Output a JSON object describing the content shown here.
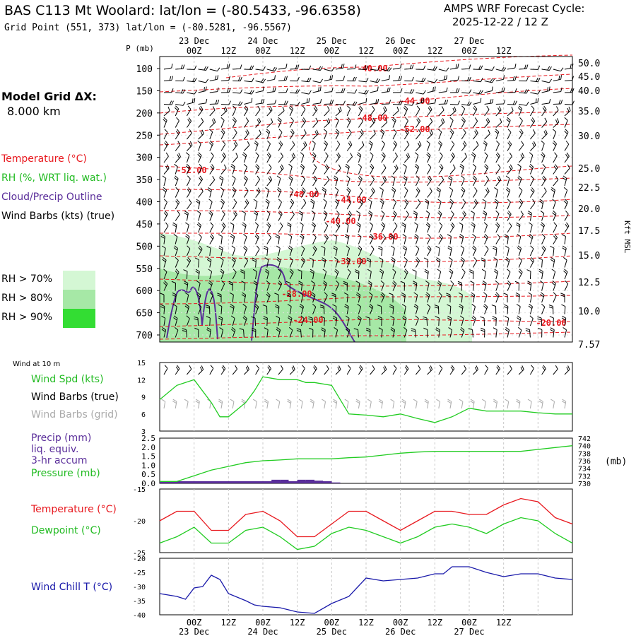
{
  "header": {
    "station_title": "BAS C113 Mt Woolard:  lat/lon = (-80.5433, -96.6358)",
    "grid_point": "Grid Point (551, 373) lat/lon = (-80.5281, -96.5567)",
    "forecast_label": "AMPS WRF Forecast Cycle:",
    "forecast_cycle": "2025-12-22 / 12  Z"
  },
  "left_panel": {
    "model_grid_label": "Model Grid ΔX:",
    "model_grid_value": "8.000 km",
    "legend_temperature": "Temperature (°C)",
    "legend_rh": "RH (%, WRT liq. wat.)",
    "legend_cloud": "Cloud/Precip Outline",
    "legend_wind": "Wind Barbs (kts) (true)",
    "rh_70": "RH > 70%",
    "rh_80": "RH > 80%",
    "rh_90": "RH > 90%",
    "wind_at": "Wind at 10 m",
    "wind_spd": "Wind Spd (kts)",
    "wind_barbs_true": "Wind Barbs (true)",
    "wind_barbs_grid": "Wind Barbs (grid)",
    "precip_1": "Precip (mm)",
    "precip_2": "liq. equiv.",
    "precip_3": "3-hr accum",
    "pressure": "Pressure (mb)",
    "temperature": "Temperature (°C)",
    "dewpoint": "Dewpoint (°C)",
    "wind_chill": "Wind Chill T (°C)"
  },
  "colors": {
    "temp": "#e8191f",
    "green": "#22cc22",
    "purple": "#5a2e9a",
    "blue": "#1a1aaa",
    "rh70": "#d4f7d4",
    "rh80": "#a6e8a6",
    "rh90": "#33dd33",
    "grid_barb": "#aaaaaa"
  },
  "chart_data": [
    {
      "type": "time-height cross-section",
      "time_ticks": [
        "00Z",
        "12Z",
        "00Z",
        "12Z",
        "00Z",
        "12Z",
        "00Z",
        "12Z",
        "00Z",
        "12Z"
      ],
      "date_labels": [
        "23 Dec",
        "24 Dec",
        "25 Dec",
        "26 Dec",
        "27 Dec"
      ],
      "ylabel": "P (mb)",
      "pressure_levels": [
        100,
        150,
        200,
        250,
        300,
        350,
        400,
        450,
        500,
        550,
        600,
        650,
        700
      ],
      "height_ticks_kft": [
        "50.0",
        "45.0",
        "40.0",
        "35.0",
        "30.0",
        "25.0",
        "22.5",
        "20.0",
        "17.5",
        "15.0",
        "12.5",
        "10.0",
        "7.57"
      ],
      "right_axis_label": "Kft MSL",
      "temperature_labels": [
        "-40.00",
        "-44.00",
        "-48.00",
        "-52.00",
        "-52.00",
        "-48.00",
        "-44.00",
        "-40.00",
        "-36.00",
        "-32.00",
        "-28.00",
        "-24.00",
        "-20.00"
      ]
    },
    {
      "type": "line",
      "title": "Wind Spd (kts)",
      "ylim": [
        3,
        15
      ],
      "yticks": [
        "15",
        "12",
        "9",
        "6",
        "3"
      ],
      "x_hours": [
        0,
        6,
        12,
        18,
        21,
        24,
        30,
        33,
        36,
        42,
        48,
        51,
        54,
        60,
        66,
        72,
        78,
        84,
        90,
        96,
        102,
        108,
        114,
        120,
        126,
        132,
        138,
        144
      ],
      "values": [
        8.5,
        11,
        12,
        8,
        5.5,
        5.5,
        8,
        10,
        12.5,
        12,
        12,
        11.5,
        11.5,
        11,
        6,
        5.8,
        5.5,
        6,
        5.2,
        4.5,
        5.5,
        7,
        6.5,
        6.5,
        6.5,
        6.2,
        6,
        6
      ]
    },
    {
      "type": "bar+line",
      "precip_ylim": [
        0,
        2.5
      ],
      "precip_yticks": [
        "2.5",
        "2.0",
        "1.5",
        "1.0",
        "0.5",
        "0.0"
      ],
      "pressure_ylim": [
        730,
        742
      ],
      "pressure_yticks": [
        "742",
        "740",
        "738",
        "736",
        "734",
        "732",
        "730"
      ],
      "pressure_unit": "(mb)",
      "precip_x_hours": [
        36,
        39,
        42,
        45,
        48,
        51,
        54,
        57,
        60
      ],
      "precip_values": [
        0.1,
        0.2,
        0.2,
        0.1,
        0.2,
        0.2,
        0.15,
        0.1,
        0.05
      ],
      "pressure_x_hours": [
        0,
        6,
        12,
        18,
        24,
        30,
        36,
        42,
        48,
        54,
        60,
        66,
        72,
        78,
        84,
        90,
        96,
        102,
        108,
        114,
        120,
        126,
        132,
        138,
        144
      ],
      "pressure_values": [
        730.5,
        730.5,
        732,
        733.5,
        734.5,
        735.5,
        736,
        736.2,
        736.5,
        736.5,
        736.5,
        736.8,
        737,
        737.5,
        738,
        738.3,
        738.5,
        738.5,
        738.5,
        738.5,
        738.5,
        738.5,
        739,
        739.5,
        740
      ]
    },
    {
      "type": "line",
      "ylim": [
        -25,
        -15
      ],
      "yticks": [
        "-15",
        "-20",
        "-25"
      ],
      "series": [
        {
          "name": "Temperature",
          "x_hours": [
            0,
            6,
            12,
            18,
            24,
            30,
            36,
            42,
            48,
            54,
            60,
            66,
            72,
            78,
            84,
            90,
            96,
            102,
            108,
            114,
            120,
            126,
            132,
            138,
            144
          ],
          "values": [
            -20,
            -18.5,
            -18.5,
            -21.5,
            -21.5,
            -19,
            -18.5,
            -20,
            -22.5,
            -22.5,
            -20.5,
            -18.5,
            -18.5,
            -20,
            -21.5,
            -20,
            -18.5,
            -18.5,
            -19,
            -19,
            -17.5,
            -16.5,
            -17,
            -19.5,
            -20.5
          ]
        },
        {
          "name": "Dewpoint",
          "x_hours": [
            0,
            6,
            12,
            18,
            24,
            30,
            36,
            42,
            48,
            54,
            60,
            66,
            72,
            78,
            84,
            90,
            96,
            102,
            108,
            114,
            120,
            126,
            132,
            138,
            144
          ],
          "values": [
            -23.5,
            -22.5,
            -21,
            -23.5,
            -23.5,
            -21.5,
            -21,
            -22.5,
            -24.5,
            -24,
            -22,
            -21,
            -21.5,
            -22.5,
            -23.5,
            -22.5,
            -21,
            -20.5,
            -21,
            -22,
            -20.5,
            -19.5,
            -20,
            -22,
            -23.5
          ]
        }
      ]
    },
    {
      "type": "line",
      "title": "Wind Chill T (°C)",
      "ylim": [
        -40,
        -20
      ],
      "yticks": [
        "-20",
        "-25",
        "-30",
        "-35",
        "-40"
      ],
      "x_hours": [
        0,
        6,
        9,
        12,
        15,
        18,
        21,
        24,
        30,
        33,
        36,
        42,
        48,
        54,
        60,
        66,
        72,
        78,
        84,
        90,
        96,
        99,
        102,
        108,
        114,
        120,
        126,
        132,
        138,
        144
      ],
      "values": [
        -32.5,
        -33.5,
        -34.5,
        -30.5,
        -30,
        -26,
        -27.5,
        -32.5,
        -35,
        -36.5,
        -37,
        -37.5,
        -39,
        -39.5,
        -36,
        -33.5,
        -27,
        -28,
        -27.5,
        -27,
        -25.5,
        -25.5,
        -23,
        -23,
        -25,
        -26.5,
        -25.5,
        -25.5,
        -27,
        -27.5
      ]
    }
  ]
}
